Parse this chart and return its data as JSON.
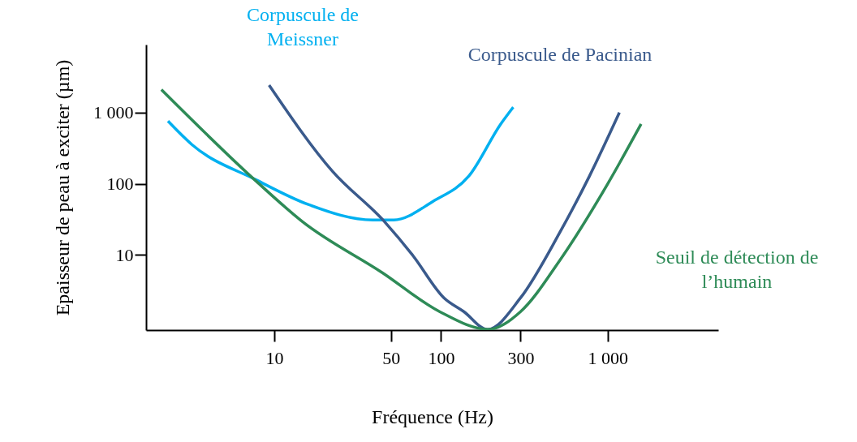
{
  "chart_data": {
    "type": "line",
    "xlabel": "Fréquence (Hz)",
    "ylabel": "Epaisseur de peau à exciter (µm)",
    "log": "xy",
    "xlim": [
      1.7,
      4600
    ],
    "ylim": [
      0.88,
      9000
    ],
    "xticks": [
      10,
      50,
      100,
      300,
      {
        "value": 1000,
        "label": "1 000"
      }
    ],
    "yticks": [
      10,
      100,
      {
        "value": 1000,
        "label": "1 000"
      }
    ],
    "grid": false,
    "legend": false,
    "marker": "none",
    "line_style": "solid",
    "series": [
      {
        "name": "Corpuscule de Meissner",
        "color": "#00b0f0",
        "x": [
          2.3,
          3.2,
          7.8,
          16,
          39,
          52,
          90,
          147,
          228,
          271
        ],
        "values": [
          758,
          355,
          113,
          51,
          31,
          31,
          57,
          129,
          690,
          1190
        ]
      },
      {
        "name": "Corpuscule de Pacinian",
        "color": "#3a5a8c",
        "x": [
          9.3,
          22.3,
          45.7,
          68,
          104,
          137,
          190,
          300,
          514,
          778,
          1175
        ],
        "values": [
          2430,
          150,
          29.5,
          9.7,
          2.5,
          1.6,
          0.9,
          2.5,
          20.4,
          129,
          1000
        ]
      },
      {
        "name": "Seuil de détection de l’humain",
        "color": "#2e8b57",
        "x": [
          2.1,
          7.8,
          14.7,
          44.6,
          98,
          192,
          300,
          514,
          1000,
          1585
        ],
        "values": [
          2100,
          108,
          29.5,
          5.6,
          1.6,
          0.9,
          1.6,
          8.3,
          100,
          690
        ]
      }
    ]
  }
}
